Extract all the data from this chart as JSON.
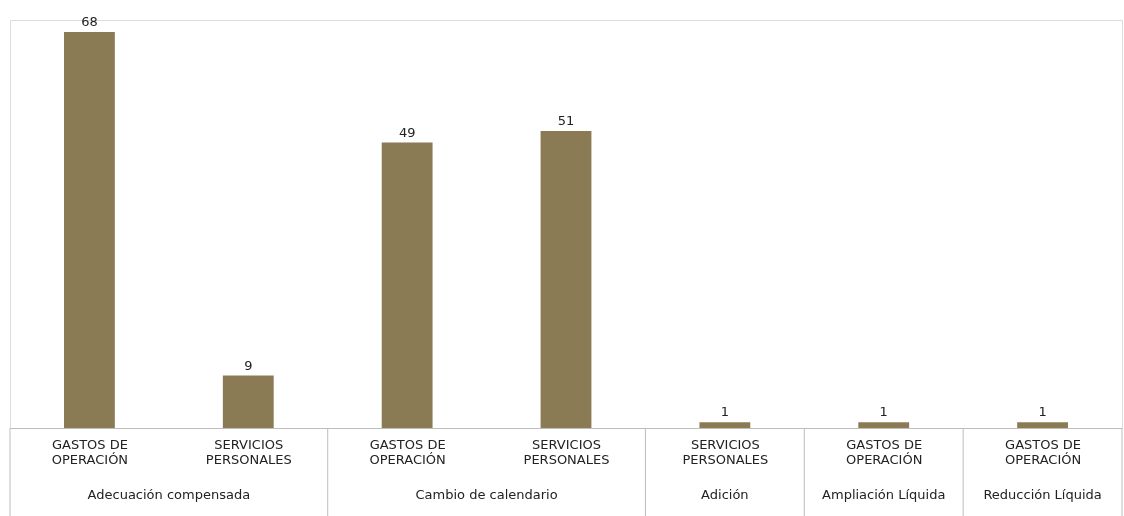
{
  "chart_data": {
    "type": "bar",
    "categories": [
      "GASTOS DE OPERACIÓN",
      "SERVICIOS PERSONALES",
      "GASTOS DE OPERACIÓN",
      "SERVICIOS PERSONALES",
      "SERVICIOS PERSONALES",
      "GASTOS DE OPERACIÓN",
      "GASTOS DE OPERACIÓN"
    ],
    "values": [
      68,
      9,
      49,
      51,
      1,
      1,
      1
    ],
    "color": "#8b7b55",
    "data_labels": true,
    "grid": false,
    "annotations": [
      "Adecuación compensada",
      "Cambio de calendario",
      "Adición",
      "Ampliación Líquida",
      "Reducción Líquida"
    ]
  }
}
